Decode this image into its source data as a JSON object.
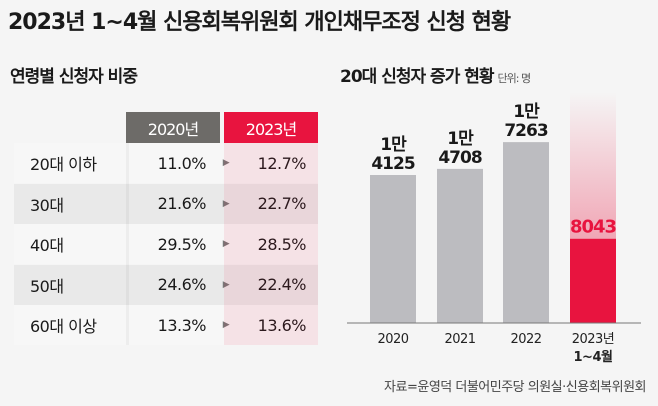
{
  "title": "2023년 1~4월 신용회복위원회 개인채무조정 신청 현황",
  "left": {
    "subtitle": "연령별 신청자 비중",
    "headers": [
      "2020년",
      "2023년"
    ],
    "header_colors": [
      "#6d6b68",
      "#e8143f"
    ],
    "arrow": "▶",
    "rows": [
      {
        "label": "20대 이하",
        "v2020": "11.0%",
        "v2023": "12.7%"
      },
      {
        "label": "30대",
        "v2020": "21.6%",
        "v2023": "22.7%"
      },
      {
        "label": "40대",
        "v2020": "29.5%",
        "v2023": "28.5%"
      },
      {
        "label": "50대",
        "v2020": "24.6%",
        "v2023": "22.4%"
      },
      {
        "label": "60대 이상",
        "v2020": "13.3%",
        "v2023": "13.6%"
      }
    ]
  },
  "right": {
    "subtitle": "20대 신청자 증가 현황",
    "unit": "단위: 명"
  },
  "chart_data": {
    "type": "bar",
    "title": "20대 신청자 증가 현황",
    "unit": "단위: 명",
    "categories": [
      "2020",
      "2021",
      "2022",
      "2023년 1~4월"
    ],
    "category_lines": [
      [
        "2020"
      ],
      [
        "2021"
      ],
      [
        "2022"
      ],
      [
        "2023년",
        "1~4월"
      ]
    ],
    "values": [
      14125,
      14708,
      17263,
      8043
    ],
    "labels": [
      [
        "1만",
        "4125"
      ],
      [
        "1만",
        "4708"
      ],
      [
        "1만",
        "7263"
      ],
      [
        "8043"
      ]
    ],
    "colors": [
      "#bcbcc0",
      "#bcbcc0",
      "#bcbcc0",
      "#e8143f"
    ],
    "highlight_color": "#e8143f",
    "ylim": [
      0,
      20000
    ]
  },
  "source": "자료=윤영덕 더불어민주당 의원실·신용회복위원회"
}
